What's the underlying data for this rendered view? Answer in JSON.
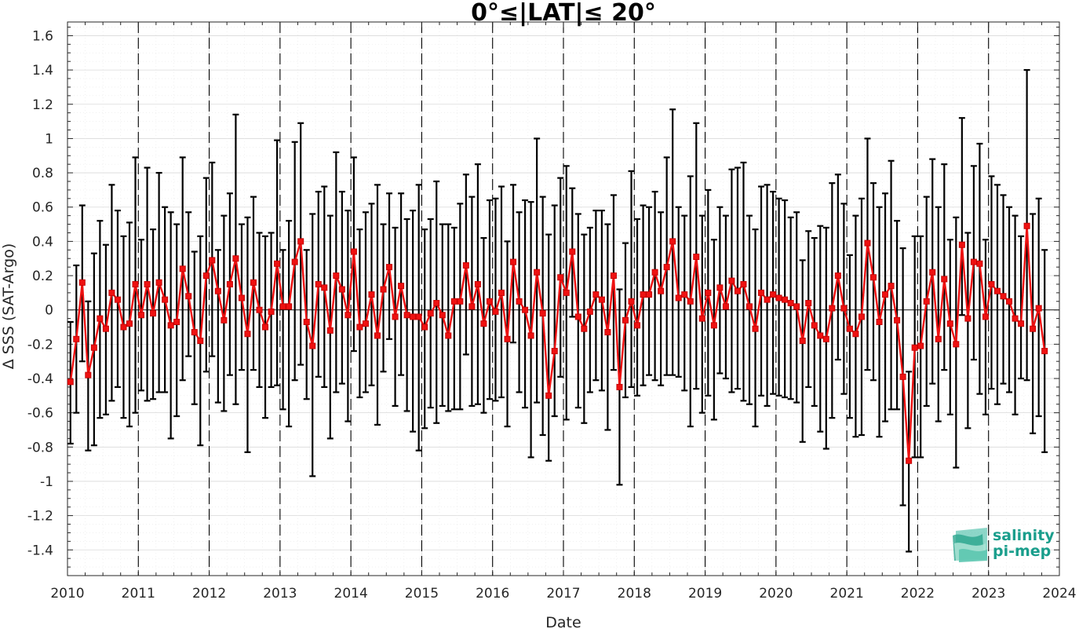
{
  "chart_data": {
    "type": "line",
    "title": "0°≤|LAT|≤ 20°",
    "xlabel": "Date",
    "ylabel": "Δ SSS (SAT-Argo)",
    "xlim": [
      2010,
      2024
    ],
    "ylim": [
      -1.55,
      1.68
    ],
    "x_ticks": [
      "2010",
      "2011",
      "2012",
      "2013",
      "2014",
      "2015",
      "2016",
      "2017",
      "2018",
      "2019",
      "2020",
      "2021",
      "2022",
      "2023",
      "2024"
    ],
    "y_ticks": [
      "-1.4",
      "-1.2",
      "-1",
      "-0.8",
      "-0.6",
      "-0.4",
      "-0.2",
      "0",
      "0.2",
      "0.4",
      "0.6",
      "0.8",
      "1",
      "1.2",
      "1.4",
      "1.6"
    ],
    "year_dividers": [
      2011,
      2012,
      2013,
      2014,
      2015,
      2016,
      2017,
      2018,
      2019,
      2020,
      2021,
      2022,
      2023
    ],
    "grid": true,
    "colors": {
      "series": "#ee1111",
      "error_bars": "#000000",
      "dividers": "#000000"
    },
    "series": [
      {
        "start": "2010-01",
        "step": "1 month",
        "values": [
          -0.42,
          -0.17,
          0.16,
          -0.38,
          -0.22,
          -0.05,
          -0.11,
          0.1,
          0.06,
          -0.1,
          -0.08,
          0.15,
          -0.03,
          0.15,
          -0.02,
          0.16,
          0.06,
          -0.09,
          -0.07,
          0.24,
          0.08,
          -0.13,
          -0.18,
          0.2,
          0.29,
          0.11,
          -0.06,
          0.15,
          0.3,
          0.07,
          -0.14,
          0.16,
          0.0,
          -0.1,
          -0.01,
          0.27,
          0.02,
          0.02,
          0.28,
          0.4,
          -0.07,
          -0.21,
          0.15,
          0.13,
          -0.12,
          0.2,
          0.12,
          -0.03,
          0.34,
          -0.1,
          -0.08,
          0.09,
          -0.15,
          0.12,
          0.25,
          -0.04,
          0.14,
          -0.03,
          -0.04,
          -0.04,
          -0.1,
          -0.02,
          0.04,
          -0.03,
          -0.15,
          0.05,
          0.05,
          0.26,
          0.02,
          0.15,
          -0.08,
          0.05,
          -0.01,
          0.1,
          -0.17,
          0.28,
          0.05,
          0.0,
          -0.15,
          0.22,
          -0.02,
          -0.5,
          -0.24,
          0.19,
          0.1,
          0.34,
          -0.04,
          -0.11,
          -0.01,
          0.09,
          0.06,
          -0.13,
          0.2,
          -0.45,
          -0.06,
          0.05,
          -0.09,
          0.09,
          0.09,
          0.22,
          0.11,
          0.25,
          0.4,
          0.07,
          0.09,
          0.05,
          0.31,
          -0.05,
          0.1,
          -0.09,
          0.13,
          0.02,
          0.17,
          0.11,
          0.15,
          0.02,
          -0.11,
          0.1,
          0.06,
          0.09,
          0.07,
          0.06,
          0.04,
          0.02,
          -0.18,
          0.04,
          -0.09,
          -0.15,
          -0.17,
          0.01,
          0.2,
          0.01,
          -0.11,
          -0.14,
          -0.04,
          0.39,
          0.19,
          -0.07,
          0.09,
          0.14,
          -0.06,
          -0.39,
          -0.88,
          -0.22,
          -0.21,
          0.05,
          0.22,
          -0.17,
          0.18,
          -0.08,
          -0.2,
          0.38,
          -0.05,
          0.28,
          0.27,
          -0.04,
          0.15,
          0.11,
          0.08,
          0.05,
          -0.05,
          -0.08,
          0.49,
          -0.11,
          0.01,
          -0.24
        ],
        "upper": [
          -0.07,
          0.26,
          0.61,
          0.05,
          0.33,
          0.52,
          0.38,
          0.73,
          0.58,
          0.43,
          0.51,
          0.89,
          0.41,
          0.83,
          0.47,
          0.8,
          0.6,
          0.57,
          0.5,
          0.89,
          0.57,
          0.34,
          0.43,
          0.77,
          0.86,
          0.35,
          0.55,
          0.68,
          1.14,
          0.5,
          0.54,
          0.66,
          0.45,
          0.43,
          0.45,
          0.99,
          0.35,
          0.52,
          0.98,
          1.09,
          0.35,
          0.56,
          0.69,
          0.72,
          0.55,
          0.92,
          0.69,
          0.58,
          0.89,
          0.47,
          0.57,
          0.62,
          0.73,
          0.5,
          0.68,
          0.48,
          0.68,
          0.53,
          0.58,
          0.73,
          0.47,
          0.53,
          0.75,
          0.5,
          0.5,
          0.48,
          0.62,
          0.79,
          0.66,
          0.85,
          0.42,
          0.64,
          0.65,
          0.72,
          0.4,
          0.73,
          0.57,
          0.64,
          0.63,
          1.0,
          0.66,
          0.44,
          0.61,
          0.77,
          0.84,
          0.71,
          0.56,
          0.44,
          0.48,
          0.58,
          0.58,
          0.5,
          0.67,
          0.12,
          0.39,
          0.81,
          0.53,
          0.61,
          0.6,
          0.69,
          0.57,
          0.89,
          1.17,
          0.6,
          0.55,
          0.78,
          1.09,
          0.55,
          0.7,
          0.41,
          0.6,
          0.55,
          0.82,
          0.83,
          0.86,
          0.55,
          0.47,
          0.72,
          0.73,
          0.69,
          0.65,
          0.64,
          0.54,
          0.57,
          0.29,
          0.46,
          0.42,
          0.49,
          0.48,
          0.74,
          0.79,
          0.62,
          0.32,
          0.55,
          0.65,
          1.0,
          0.74,
          0.6,
          0.68,
          0.87,
          0.52,
          0.36,
          -0.36,
          0.43,
          0.43,
          0.66,
          0.88,
          0.6,
          0.85,
          0.41,
          0.54,
          1.12,
          0.45,
          0.84,
          0.97,
          0.41,
          0.78,
          0.73,
          0.67,
          0.6,
          0.55,
          0.43,
          1.4,
          0.56,
          0.65,
          0.35
        ],
        "lower": [
          -0.78,
          -0.6,
          -0.3,
          -0.82,
          -0.79,
          -0.63,
          -0.61,
          -0.53,
          -0.45,
          -0.63,
          -0.68,
          -0.6,
          -0.47,
          -0.53,
          -0.52,
          -0.48,
          -0.48,
          -0.75,
          -0.62,
          -0.41,
          -0.27,
          -0.55,
          -0.79,
          -0.36,
          -0.27,
          -0.54,
          -0.59,
          -0.38,
          -0.55,
          -0.35,
          -0.83,
          -0.35,
          -0.45,
          -0.63,
          -0.45,
          -0.44,
          -0.58,
          -0.68,
          -0.41,
          -0.32,
          -0.52,
          -0.97,
          -0.39,
          -0.45,
          -0.75,
          -0.48,
          -0.43,
          -0.65,
          -0.24,
          -0.51,
          -0.48,
          -0.44,
          -0.67,
          -0.36,
          -0.17,
          -0.56,
          -0.38,
          -0.59,
          -0.71,
          -0.82,
          -0.69,
          -0.57,
          -0.66,
          -0.56,
          -0.59,
          -0.58,
          -0.58,
          -0.26,
          -0.56,
          -0.55,
          -0.6,
          -0.52,
          -0.53,
          -0.51,
          -0.68,
          -0.19,
          -0.48,
          -0.57,
          -0.86,
          -0.54,
          -0.73,
          -0.88,
          -0.62,
          -0.39,
          -0.64,
          -0.04,
          -0.57,
          -0.66,
          -0.48,
          -0.41,
          -0.47,
          -0.7,
          -0.35,
          -1.02,
          -0.51,
          -0.45,
          -0.5,
          -0.44,
          -0.38,
          -0.41,
          -0.44,
          -0.38,
          -0.38,
          -0.39,
          -0.47,
          -0.68,
          -0.46,
          -0.6,
          -0.5,
          -0.64,
          -0.37,
          -0.4,
          -0.48,
          -0.46,
          -0.53,
          -0.55,
          -0.68,
          -0.5,
          -0.56,
          -0.49,
          -0.5,
          -0.51,
          -0.52,
          -0.54,
          -0.77,
          -0.45,
          -0.56,
          -0.71,
          -0.81,
          -0.63,
          -0.29,
          -0.49,
          -0.63,
          -0.74,
          -0.73,
          -0.35,
          -0.41,
          -0.74,
          -0.65,
          -0.58,
          -0.58,
          -1.14,
          -1.41,
          -0.86,
          -0.86,
          -0.56,
          -0.43,
          -0.65,
          -0.35,
          -0.61,
          -0.92,
          -0.03,
          -0.69,
          -0.29,
          -0.49,
          -0.61,
          -0.46,
          -0.55,
          -0.43,
          -0.48,
          -0.61,
          -0.4,
          -0.41,
          -0.72,
          -0.62,
          -0.83
        ]
      }
    ]
  },
  "logo": {
    "line1": "salinity",
    "line2": "pi-mep",
    "text_color": "#1a9e8c"
  }
}
